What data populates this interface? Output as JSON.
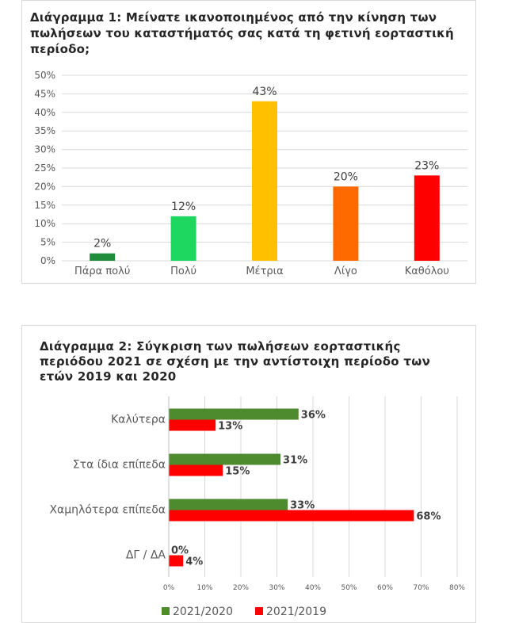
{
  "chart_data": [
    {
      "type": "bar",
      "title": "Διάγραμμα 1: Μείνατε ικανοποιημένος από την κίνηση των πωλήσεων του καταστήματός σας κατά τη φετινή εορταστική περίοδο;",
      "categories": [
        "Πάρα πολύ",
        "Πολύ",
        "Μέτρια",
        "Λίγο",
        "Καθόλου"
      ],
      "values": [
        2,
        12,
        43,
        20,
        23
      ],
      "value_labels": [
        "2%",
        "12%",
        "43%",
        "20%",
        "23%"
      ],
      "colors": [
        "#1e8c3a",
        "#1ed760",
        "#ffc000",
        "#ff6a00",
        "#ff0000"
      ],
      "ylim": [
        0,
        50
      ],
      "yticks": [
        0,
        5,
        10,
        15,
        20,
        25,
        30,
        35,
        40,
        45,
        50
      ],
      "ytick_labels": [
        "0%",
        "5%",
        "10%",
        "15%",
        "20%",
        "25%",
        "30%",
        "35%",
        "40%",
        "45%",
        "50%"
      ],
      "grid": true,
      "xlabel": "",
      "ylabel": ""
    },
    {
      "type": "bar",
      "orientation": "horizontal",
      "title": "Διάγραμμα 2: Σύγκριση των πωλήσεων εορταστικής περιόδου 2021 σε σχέση με την αντίστοιχη περίοδο των ετών 2019 και 2020",
      "categories": [
        "Καλύτερα",
        "Στα ίδια επίπεδα",
        "Χαμηλότερα επίπεδα",
        "ΔΓ / ΔΑ"
      ],
      "series": [
        {
          "name": "2021/2020",
          "color": "#4e8a2e",
          "values": [
            36,
            31,
            33,
            0
          ],
          "labels": [
            "36%",
            "31%",
            "33%",
            "0%"
          ]
        },
        {
          "name": "2021/2019",
          "color": "#ff0000",
          "values": [
            13,
            15,
            68,
            4
          ],
          "labels": [
            "13%",
            "15%",
            "68%",
            "4%"
          ]
        }
      ],
      "xlim": [
        0,
        80
      ],
      "xticks": [
        0,
        10,
        20,
        30,
        40,
        50,
        60,
        70,
        80
      ],
      "xtick_labels": [
        "0%",
        "10%",
        "20%",
        "30%",
        "40%",
        "50%",
        "60%",
        "70%",
        "80%"
      ],
      "grid": true,
      "legend": "bottom"
    }
  ]
}
